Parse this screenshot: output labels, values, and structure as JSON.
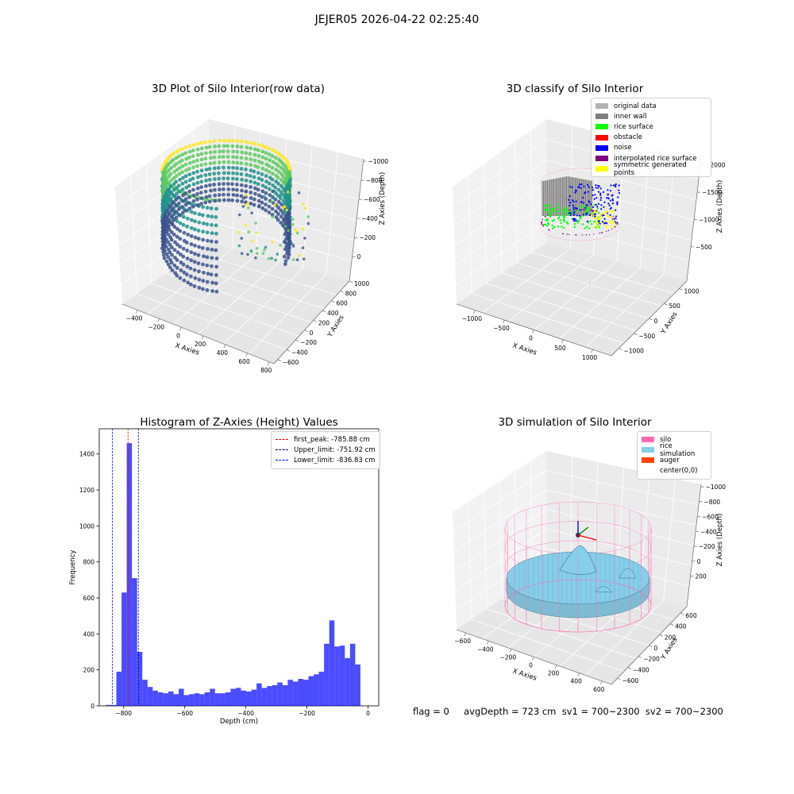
{
  "suptitle": "JEJER05 2026-04-22 02:25:40",
  "status_text": "flag = 0     avgDepth = 723 cm  sv1 = 700~2300  sv2 = 700~2300",
  "chart_data": [
    {
      "type": "scatter",
      "title": "3D Plot of Silo Interior(row data)",
      "xlabel": "X Axies",
      "ylabel": "Y Axies",
      "zlabel": "Z Axies (Depth)",
      "x_ticks": [
        "−400",
        "−200",
        "0",
        "200",
        "400",
        "600",
        "800"
      ],
      "y_ticks": [
        "−600",
        "−400",
        "−200",
        "0",
        "200",
        "400",
        "600",
        "800",
        "1000"
      ],
      "z_ticks": [
        "−1000",
        "−800",
        "−600",
        "−400",
        "−200",
        "0"
      ],
      "colormap": [
        "#440154",
        "#3b528b",
        "#21918c",
        "#5ec962",
        "#fde725"
      ],
      "grid": true
    },
    {
      "type": "scatter",
      "title": "3D classify of Silo Interior",
      "xlabel": "X Axies",
      "ylabel": "Y Axies",
      "zlabel": "Z Axies (Depth)",
      "x_ticks": [
        "−1000",
        "−500",
        "0",
        "500",
        "1000"
      ],
      "y_ticks": [
        "−1000",
        "−500",
        "0",
        "500",
        "1000"
      ],
      "z_ticks": [
        "−2000",
        "−1500",
        "−1000",
        "−500"
      ],
      "legend_position": "top-right",
      "legend": [
        {
          "label": "original data",
          "color": "#b3b3b3"
        },
        {
          "label": "inner wall",
          "color": "#808080"
        },
        {
          "label": "rice surface",
          "color": "#00ff00"
        },
        {
          "label": "obstacle",
          "color": "#ff0000"
        },
        {
          "label": "noise",
          "color": "#0000ff"
        },
        {
          "label": "interpolated rice surface",
          "color": "#800080"
        },
        {
          "label": "symmetric generated points",
          "color": "#ffff00"
        }
      ],
      "grid": true
    },
    {
      "type": "bar",
      "title": "Histogram of Z-Axies (Height) Values",
      "xlabel": "Depth (cm)",
      "ylabel": "Frequency",
      "xlim": [
        -880,
        35
      ],
      "ylim": [
        0,
        1540
      ],
      "x_ticks": [
        -800,
        -600,
        -400,
        -200,
        0
      ],
      "y_ticks": [
        0,
        200,
        400,
        600,
        800,
        1000,
        1200,
        1400
      ],
      "x_tick_labels": [
        "−800",
        "−600",
        "−400",
        "−200",
        "0"
      ],
      "bar_color": "#0000ff",
      "bin_start": -858,
      "bin_width": 17,
      "values": [
        5,
        5,
        190,
        630,
        1460,
        710,
        300,
        145,
        105,
        85,
        75,
        70,
        80,
        65,
        95,
        60,
        65,
        70,
        65,
        75,
        95,
        70,
        70,
        75,
        95,
        100,
        85,
        80,
        90,
        125,
        100,
        110,
        115,
        130,
        115,
        145,
        135,
        150,
        145,
        165,
        175,
        190,
        345,
        475,
        330,
        335,
        265,
        345,
        230
      ],
      "vlines": [
        {
          "label": "first_peak: -785.88 cm",
          "x": -785.88,
          "color": "#ff0000"
        },
        {
          "label": "Upper_limit: -751.92 cm",
          "x": -751.92,
          "color": "#00008b"
        },
        {
          "label": "Lower_limit: -836.83 cm",
          "x": -836.83,
          "color": "#0000ff"
        }
      ],
      "legend_position": "top-right",
      "grid": false
    },
    {
      "type": "area",
      "title": "3D simulation of Silo Interior",
      "xlabel": "X Axies",
      "ylabel": "Y Axies",
      "zlabel": "Z Axies (Depth)",
      "x_ticks": [
        "−600",
        "−400",
        "−200",
        "0",
        "200",
        "400",
        "600"
      ],
      "y_ticks": [
        "−600",
        "−400",
        "−200",
        "0",
        "200",
        "400",
        "600"
      ],
      "z_ticks": [
        "−1000",
        "−800",
        "−600",
        "−400",
        "−200",
        "0",
        "200"
      ],
      "legend_position": "top-right",
      "legend": [
        {
          "label": "silo",
          "color": "#ff69b4"
        },
        {
          "label": "rice simulation",
          "color": "#87ceeb"
        },
        {
          "label": "auger",
          "color": "#ff4500"
        },
        {
          "label": "center(0,0)",
          "color": ""
        }
      ],
      "grid": true
    }
  ]
}
